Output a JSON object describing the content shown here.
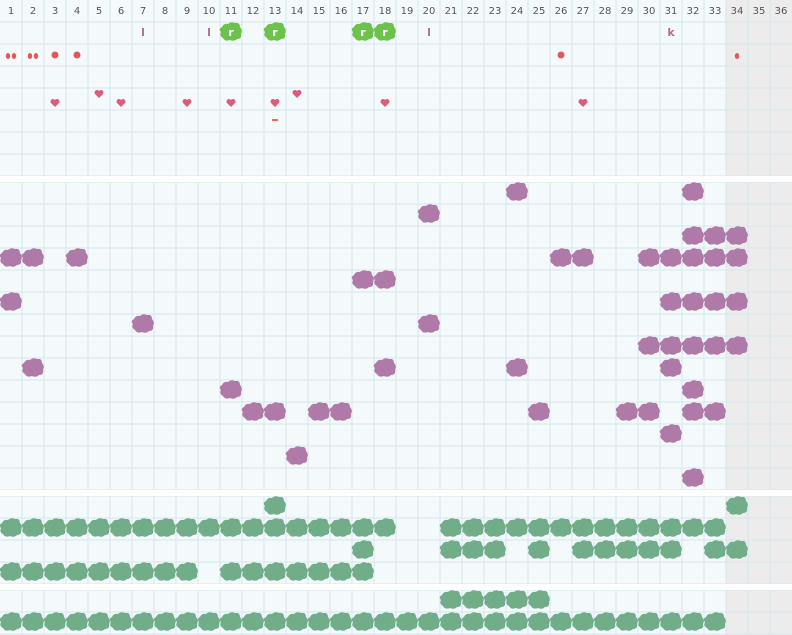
{
  "header": {
    "columns": [
      "1",
      "2",
      "3",
      "4",
      "5",
      "6",
      "7",
      "8",
      "9",
      "10",
      "11",
      "12",
      "13",
      "14",
      "15",
      "16",
      "17",
      "18",
      "19",
      "20",
      "21",
      "22",
      "23",
      "24",
      "25",
      "26",
      "27",
      "28",
      "29",
      "30",
      "31",
      "32",
      "33",
      "34",
      "35",
      "36"
    ]
  },
  "icon_row": {
    "labels": [
      null,
      null,
      null,
      null,
      null,
      null,
      "l",
      null,
      null,
      "l",
      "r",
      null,
      "r",
      null,
      null,
      null,
      "r",
      "r",
      null,
      "l",
      null,
      null,
      null,
      null,
      null,
      null,
      null,
      null,
      null,
      null,
      "k",
      null,
      null,
      null,
      null,
      null
    ]
  }
}
